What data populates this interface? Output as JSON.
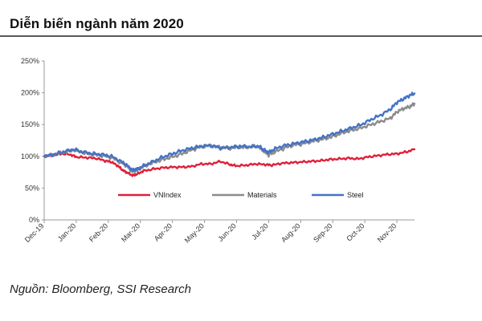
{
  "header": {
    "title": "Diễn biến ngành năm 2020"
  },
  "footer": {
    "source": "Nguồn: Bloomberg, SSI Research"
  },
  "chart_data": {
    "type": "line",
    "title": "Diễn biến ngành năm 2020",
    "xlabel": "",
    "ylabel": "",
    "ylim": [
      0,
      250
    ],
    "y_ticks": [
      0,
      50,
      100,
      150,
      200,
      250
    ],
    "y_tick_labels": [
      "0%",
      "50%",
      "100%",
      "150%",
      "200%",
      "250%"
    ],
    "y_format": "percent",
    "grid": false,
    "legend_position": "center",
    "x": [
      "Dec-19",
      "Jan-20",
      "Feb-20",
      "Mar-20",
      "Apr-20",
      "May-20",
      "Jun-20",
      "Jul-20",
      "Aug-20",
      "Sep-20",
      "Oct-20",
      "Nov-20"
    ],
    "x_tick_labels": [
      "Dec-19",
      "Jan-20",
      "Feb-20",
      "Mar-20",
      "Apr-20",
      "May-20",
      "Jun-20",
      "Jul-20",
      "Aug-20",
      "Sep-20",
      "Oct-20",
      "Nov-20"
    ],
    "series": [
      {
        "name": "VNIndex",
        "color": "#e0203a",
        "points": [
          [
            0,
            100
          ],
          [
            0.3,
            102
          ],
          [
            0.5,
            104
          ],
          [
            0.8,
            103
          ],
          [
            1.0,
            99
          ],
          [
            1.3,
            98
          ],
          [
            1.6,
            97
          ],
          [
            1.9,
            93
          ],
          [
            2.1,
            91
          ],
          [
            2.3,
            85
          ],
          [
            2.45,
            78
          ],
          [
            2.6,
            74
          ],
          [
            2.75,
            70
          ],
          [
            2.9,
            72
          ],
          [
            3.1,
            77
          ],
          [
            3.4,
            80
          ],
          [
            3.7,
            82
          ],
          [
            4.0,
            83
          ],
          [
            4.3,
            83
          ],
          [
            4.6,
            84
          ],
          [
            4.9,
            88
          ],
          [
            5.2,
            88
          ],
          [
            5.5,
            92
          ],
          [
            5.8,
            87
          ],
          [
            6.0,
            85
          ],
          [
            6.3,
            86
          ],
          [
            6.6,
            88
          ],
          [
            6.9,
            87
          ],
          [
            7.1,
            86
          ],
          [
            7.4,
            89
          ],
          [
            7.7,
            90
          ],
          [
            8.0,
            91
          ],
          [
            8.3,
            92
          ],
          [
            8.6,
            93
          ],
          [
            8.9,
            95
          ],
          [
            9.2,
            96
          ],
          [
            9.5,
            97
          ],
          [
            9.8,
            96
          ],
          [
            10.1,
            99
          ],
          [
            10.4,
            101
          ],
          [
            10.7,
            103
          ],
          [
            11.0,
            104
          ],
          [
            11.3,
            107
          ],
          [
            11.55,
            111
          ]
        ]
      },
      {
        "name": "Materials",
        "color": "#8c8c8c",
        "points": [
          [
            0,
            100
          ],
          [
            0.3,
            103
          ],
          [
            0.6,
            106
          ],
          [
            0.9,
            110
          ],
          [
            1.2,
            106
          ],
          [
            1.5,
            103
          ],
          [
            1.8,
            101
          ],
          [
            2.1,
            98
          ],
          [
            2.4,
            90
          ],
          [
            2.6,
            84
          ],
          [
            2.75,
            76
          ],
          [
            2.9,
            78
          ],
          [
            3.1,
            84
          ],
          [
            3.4,
            90
          ],
          [
            3.7,
            95
          ],
          [
            4.0,
            99
          ],
          [
            4.3,
            104
          ],
          [
            4.6,
            110
          ],
          [
            4.9,
            115
          ],
          [
            5.2,
            117
          ],
          [
            5.5,
            114
          ],
          [
            5.8,
            113
          ],
          [
            6.1,
            114
          ],
          [
            6.4,
            115
          ],
          [
            6.7,
            115
          ],
          [
            6.85,
            108
          ],
          [
            7.0,
            102
          ],
          [
            7.2,
            107
          ],
          [
            7.5,
            113
          ],
          [
            7.8,
            118
          ],
          [
            8.1,
            120
          ],
          [
            8.4,
            124
          ],
          [
            8.7,
            127
          ],
          [
            9.0,
            131
          ],
          [
            9.3,
            137
          ],
          [
            9.6,
            141
          ],
          [
            9.9,
            145
          ],
          [
            10.2,
            150
          ],
          [
            10.5,
            155
          ],
          [
            10.8,
            160
          ],
          [
            11.0,
            170
          ],
          [
            11.2,
            175
          ],
          [
            11.4,
            178
          ],
          [
            11.55,
            183
          ]
        ]
      },
      {
        "name": "Steel",
        "color": "#4472c4",
        "points": [
          [
            0,
            100
          ],
          [
            0.3,
            103
          ],
          [
            0.6,
            107
          ],
          [
            0.9,
            111
          ],
          [
            1.2,
            107
          ],
          [
            1.5,
            104
          ],
          [
            1.8,
            103
          ],
          [
            2.1,
            100
          ],
          [
            2.4,
            92
          ],
          [
            2.6,
            85
          ],
          [
            2.75,
            78
          ],
          [
            2.9,
            80
          ],
          [
            3.1,
            85
          ],
          [
            3.4,
            92
          ],
          [
            3.7,
            99
          ],
          [
            4.0,
            104
          ],
          [
            4.3,
            109
          ],
          [
            4.6,
            113
          ],
          [
            4.9,
            116
          ],
          [
            5.2,
            117
          ],
          [
            5.5,
            113
          ],
          [
            5.8,
            114
          ],
          [
            6.1,
            116
          ],
          [
            6.4,
            115
          ],
          [
            6.7,
            116
          ],
          [
            6.85,
            110
          ],
          [
            7.0,
            106
          ],
          [
            7.2,
            112
          ],
          [
            7.5,
            117
          ],
          [
            7.8,
            120
          ],
          [
            8.1,
            123
          ],
          [
            8.4,
            126
          ],
          [
            8.7,
            130
          ],
          [
            9.0,
            135
          ],
          [
            9.3,
            140
          ],
          [
            9.6,
            145
          ],
          [
            9.9,
            150
          ],
          [
            10.2,
            158
          ],
          [
            10.5,
            165
          ],
          [
            10.8,
            174
          ],
          [
            11.0,
            185
          ],
          [
            11.2,
            190
          ],
          [
            11.4,
            196
          ],
          [
            11.55,
            199
          ]
        ]
      }
    ]
  }
}
